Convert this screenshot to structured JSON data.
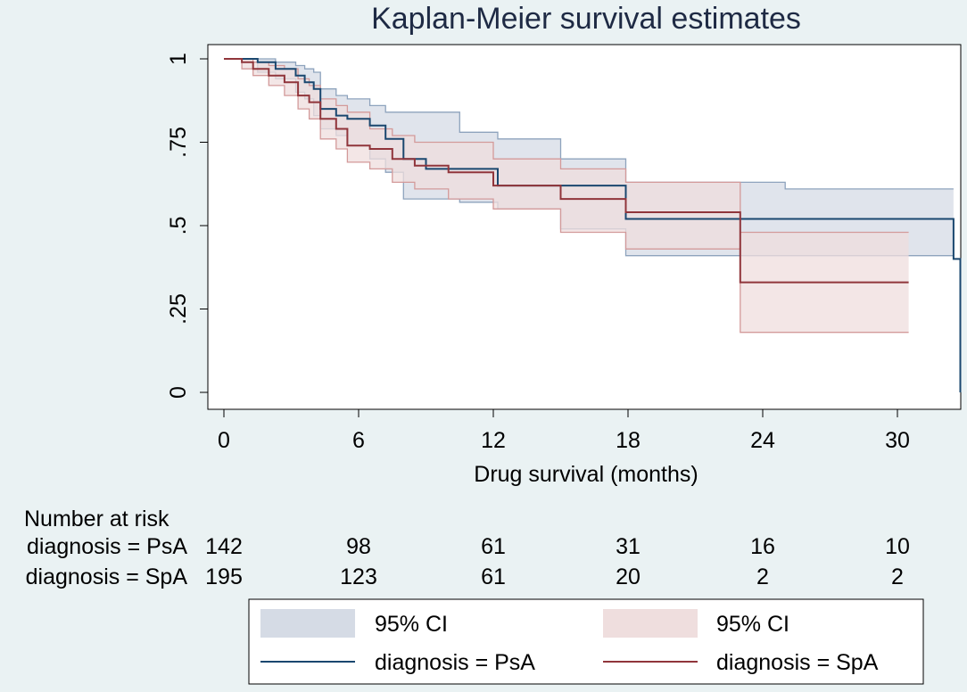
{
  "chart_data": {
    "type": "line",
    "subtype": "kaplan-meier-step",
    "title": "Kaplan-Meier survival estimates",
    "xlabel": "Drug survival (months)",
    "ylabel": "",
    "xlim": [
      0,
      32.5
    ],
    "ylim": [
      0,
      1
    ],
    "x_ticks": [
      0,
      6,
      12,
      18,
      24,
      30
    ],
    "y_ticks": [
      0,
      0.25,
      0.5,
      0.75,
      1
    ],
    "y_tick_labels": [
      "0",
      ".25",
      ".5",
      ".75",
      "1"
    ],
    "grid": false,
    "colors": {
      "psa": "#1a476f",
      "spa": "#90353b",
      "psa_ci_fill": "#d5dbe5",
      "spa_ci_fill": "#efdede",
      "psa_ci_edge": "#8ea3bd",
      "spa_ci_edge": "#d39a9a",
      "background": "#eaf2f3"
    },
    "series": [
      {
        "name": "diagnosis = PsA",
        "curve": [
          [
            0,
            1
          ],
          [
            1.5,
            0.99
          ],
          [
            2.3,
            0.97
          ],
          [
            3.2,
            0.95
          ],
          [
            3.6,
            0.93
          ],
          [
            4.0,
            0.91
          ],
          [
            4.3,
            0.85
          ],
          [
            5.0,
            0.83
          ],
          [
            5.5,
            0.82
          ],
          [
            6.5,
            0.8
          ],
          [
            7.2,
            0.76
          ],
          [
            8.0,
            0.7
          ],
          [
            9.0,
            0.67
          ],
          [
            10.5,
            0.67
          ],
          [
            12.2,
            0.62
          ],
          [
            15.0,
            0.62
          ],
          [
            17.9,
            0.52
          ],
          [
            25.0,
            0.52
          ],
          [
            32.5,
            0.4
          ],
          [
            32.8,
            0
          ]
        ],
        "ci_upper": [
          [
            0,
            1
          ],
          [
            1.5,
            1.0
          ],
          [
            2.3,
            0.99
          ],
          [
            3.2,
            0.98
          ],
          [
            3.6,
            0.97
          ],
          [
            4.0,
            0.96
          ],
          [
            4.3,
            0.91
          ],
          [
            5.0,
            0.89
          ],
          [
            5.5,
            0.88
          ],
          [
            6.5,
            0.86
          ],
          [
            7.2,
            0.84
          ],
          [
            8.0,
            0.84
          ],
          [
            9.0,
            0.84
          ],
          [
            10.5,
            0.78
          ],
          [
            12.2,
            0.76
          ],
          [
            15.0,
            0.7
          ],
          [
            17.9,
            0.63
          ],
          [
            25.0,
            0.61
          ],
          [
            32.5,
            0.61
          ]
        ],
        "ci_lower": [
          [
            0,
            1
          ],
          [
            1.5,
            0.96
          ],
          [
            2.3,
            0.94
          ],
          [
            3.2,
            0.9
          ],
          [
            3.6,
            0.88
          ],
          [
            4.0,
            0.83
          ],
          [
            4.3,
            0.79
          ],
          [
            5.0,
            0.77
          ],
          [
            5.5,
            0.74
          ],
          [
            6.5,
            0.7
          ],
          [
            7.2,
            0.66
          ],
          [
            8.0,
            0.58
          ],
          [
            9.0,
            0.58
          ],
          [
            10.5,
            0.57
          ],
          [
            12.2,
            0.55
          ],
          [
            15.0,
            0.49
          ],
          [
            17.9,
            0.41
          ],
          [
            25.0,
            0.41
          ],
          [
            32.5,
            0.41
          ]
        ]
      },
      {
        "name": "diagnosis = SpA",
        "curve": [
          [
            0,
            1
          ],
          [
            0.8,
            0.99
          ],
          [
            1.3,
            0.97
          ],
          [
            2.0,
            0.95
          ],
          [
            2.7,
            0.93
          ],
          [
            3.3,
            0.89
          ],
          [
            3.8,
            0.87
          ],
          [
            4.3,
            0.82
          ],
          [
            5.0,
            0.79
          ],
          [
            5.5,
            0.74
          ],
          [
            6.5,
            0.73
          ],
          [
            7.5,
            0.7
          ],
          [
            8.5,
            0.68
          ],
          [
            10.0,
            0.66
          ],
          [
            12.0,
            0.62
          ],
          [
            15.0,
            0.58
          ],
          [
            17.9,
            0.54
          ],
          [
            23.0,
            0.33
          ],
          [
            30.5,
            0.33
          ]
        ],
        "ci_upper": [
          [
            0,
            1
          ],
          [
            0.8,
            1.0
          ],
          [
            1.3,
            0.99
          ],
          [
            2.0,
            0.98
          ],
          [
            2.7,
            0.97
          ],
          [
            3.3,
            0.94
          ],
          [
            3.8,
            0.92
          ],
          [
            4.3,
            0.88
          ],
          [
            5.0,
            0.86
          ],
          [
            5.5,
            0.84
          ],
          [
            6.5,
            0.79
          ],
          [
            7.5,
            0.77
          ],
          [
            8.5,
            0.75
          ],
          [
            10.0,
            0.75
          ],
          [
            12.0,
            0.7
          ],
          [
            15.0,
            0.67
          ],
          [
            17.9,
            0.63
          ],
          [
            23.0,
            0.48
          ],
          [
            30.5,
            0.48
          ]
        ],
        "ci_lower": [
          [
            0,
            1
          ],
          [
            0.8,
            0.97
          ],
          [
            1.3,
            0.95
          ],
          [
            2.0,
            0.92
          ],
          [
            2.7,
            0.89
          ],
          [
            3.3,
            0.85
          ],
          [
            3.8,
            0.82
          ],
          [
            4.3,
            0.76
          ],
          [
            5.0,
            0.73
          ],
          [
            5.5,
            0.69
          ],
          [
            6.5,
            0.67
          ],
          [
            7.5,
            0.63
          ],
          [
            8.5,
            0.61
          ],
          [
            10.0,
            0.58
          ],
          [
            12.0,
            0.55
          ],
          [
            15.0,
            0.48
          ],
          [
            17.9,
            0.43
          ],
          [
            23.0,
            0.18
          ],
          [
            30.5,
            0.18
          ]
        ]
      }
    ],
    "risk_table": {
      "title": "Number at risk",
      "rows": [
        {
          "label": "diagnosis = PsA",
          "values": [
            "142",
            "98",
            "61",
            "31",
            "16",
            "10"
          ]
        },
        {
          "label": "diagnosis = SpA",
          "values": [
            "195",
            "123",
            "61",
            "20",
            "2",
            "2"
          ]
        }
      ]
    },
    "legend": {
      "placement": "bottom",
      "items": [
        {
          "label": "95% CI",
          "kind": "fill",
          "series": "psa"
        },
        {
          "label": "95% CI",
          "kind": "fill",
          "series": "spa"
        },
        {
          "label": "diagnosis = PsA",
          "kind": "line",
          "series": "psa"
        },
        {
          "label": "diagnosis = SpA",
          "kind": "line",
          "series": "spa"
        }
      ]
    }
  }
}
